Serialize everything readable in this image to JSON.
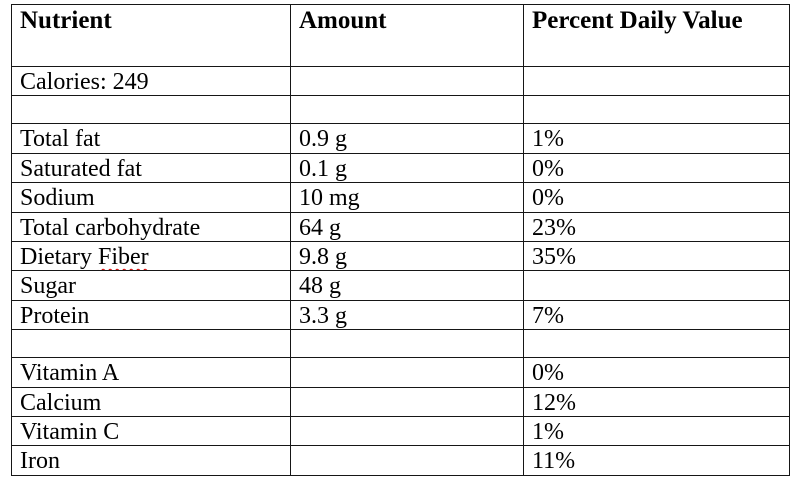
{
  "colors": {
    "background": "#ffffff",
    "border": "#161616",
    "text": "#000000",
    "spellcheck_underline": "#d40000"
  },
  "table": {
    "columns": [
      {
        "label": "Nutrient"
      },
      {
        "label": "Amount"
      },
      {
        "label": "Percent Daily Value"
      }
    ],
    "rows": [
      {
        "nutrient": "Calories: 249",
        "amount": "",
        "pdv": ""
      },
      {
        "nutrient": "",
        "amount": "",
        "pdv": ""
      },
      {
        "nutrient": "Total fat",
        "amount": "0.9 g",
        "pdv": "1%"
      },
      {
        "nutrient": "Saturated fat",
        "amount": "0.1 g",
        "pdv": "0%"
      },
      {
        "nutrient": "Sodium",
        "amount": "10 mg",
        "pdv": "0%"
      },
      {
        "nutrient": "Total carbohydrate",
        "amount": "64 g",
        "pdv": "23%"
      },
      {
        "nutrient": "Dietary Fiber",
        "nutrient_prefix": "Dietary ",
        "nutrient_misspelled": "Fiber",
        "amount": "9.8 g",
        "pdv": "35%"
      },
      {
        "nutrient": "Sugar",
        "amount": "48 g",
        "pdv": ""
      },
      {
        "nutrient": "Protein",
        "amount": "3.3 g",
        "pdv": "7%"
      },
      {
        "nutrient": "",
        "amount": "",
        "pdv": ""
      },
      {
        "nutrient": "Vitamin A",
        "amount": "",
        "pdv": "0%"
      },
      {
        "nutrient": "Calcium",
        "amount": "",
        "pdv": "12%"
      },
      {
        "nutrient": "Vitamin C",
        "amount": "",
        "pdv": "1%"
      },
      {
        "nutrient": "Iron",
        "amount": "",
        "pdv": "11%"
      }
    ]
  }
}
